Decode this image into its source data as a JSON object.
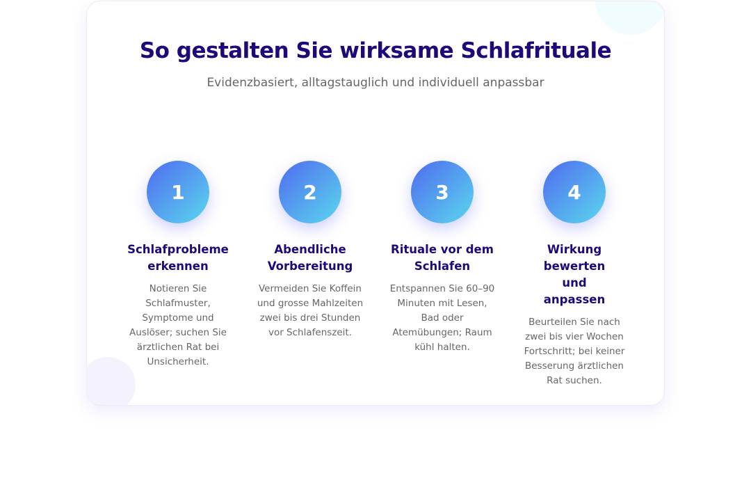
{
  "header": {
    "title": "So gestalten Sie wirksame Schlafrituale",
    "subtitle": "Evidenzbasiert, alltagstauglich und individuell anpassbar"
  },
  "colors": {
    "accent_start": "#4f6bef",
    "accent_end": "#5bd7ef",
    "title": "#1f0878",
    "text": "#666666"
  },
  "steps": [
    {
      "number": "1",
      "title": "Schlafprobleme erkennen",
      "description": "Notieren Sie Schlafmuster, Symptome und Auslöser; suchen Sie ärztlichen Rat bei Unsicherheit."
    },
    {
      "number": "2",
      "title": "Abendliche Vorbereitung",
      "description": "Vermeiden Sie Koffein und grosse Mahlzeiten zwei bis drei Stunden vor Schlafenszeit."
    },
    {
      "number": "3",
      "title": "Rituale vor dem Schlafen",
      "description": "Entspannen Sie 60–90 Minuten mit Lesen, Bad oder Atemübungen; Raum kühl halten."
    },
    {
      "number": "4",
      "title": "Wirkung bewerten und anpassen",
      "description": "Beurteilen Sie nach zwei bis vier Wochen Fortschritt; bei keiner Besserung ärztlichen Rat suchen."
    }
  ]
}
